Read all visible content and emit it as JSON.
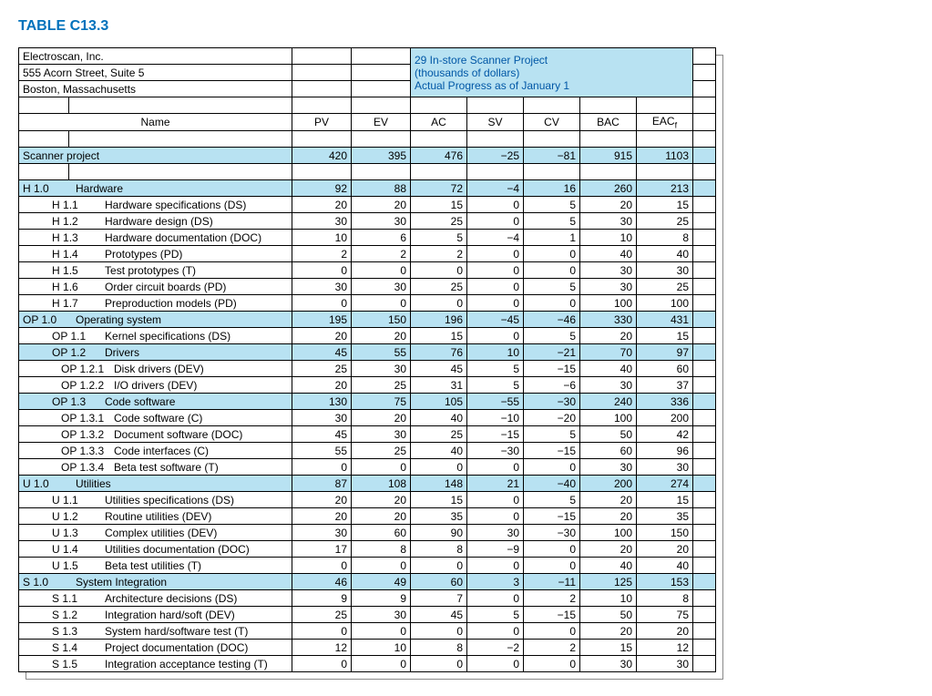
{
  "title": "TABLE C13.3",
  "company": {
    "name": "Electroscan, Inc.",
    "addr1": "555 Acorn Street, Suite 5",
    "addr2": "Boston, Massachusetts"
  },
  "project_header": {
    "line1": "29 In-store Scanner Project",
    "line2": "(thousands of dollars)",
    "line3": "Actual Progress as of January 1"
  },
  "columns": {
    "name": "Name",
    "pv": "PV",
    "ev": "EV",
    "ac": "AC",
    "sv": "SV",
    "cv": "CV",
    "bac": "BAC",
    "eac": "EAC"
  },
  "colors": {
    "highlight": "#b8e2f2",
    "title": "#0072bc",
    "proj_title": "#0057a6",
    "border": "#000000",
    "background": "#ffffff"
  },
  "rows": [
    {
      "hl": true,
      "code": "",
      "name": "Scanner project",
      "pv": "420",
      "ev": "395",
      "ac": "476",
      "sv": "−25",
      "cv": "−81",
      "bac": "915",
      "eac": "1103",
      "indent": 0,
      "spacer_after": true
    },
    {
      "hl": true,
      "code": "H 1.0",
      "name": "Hardware",
      "pv": "92",
      "ev": "88",
      "ac": "72",
      "sv": "−4",
      "cv": "16",
      "bac": "260",
      "eac": "213",
      "indent": 0
    },
    {
      "code": "H 1.1",
      "name": "Hardware specifications (DS)",
      "pv": "20",
      "ev": "20",
      "ac": "15",
      "sv": "0",
      "cv": "5",
      "bac": "20",
      "eac": "15",
      "indent": 1
    },
    {
      "code": "H 1.2",
      "name": "Hardware design (DS)",
      "pv": "30",
      "ev": "30",
      "ac": "25",
      "sv": "0",
      "cv": "5",
      "bac": "30",
      "eac": "25",
      "indent": 1
    },
    {
      "code": "H 1.3",
      "name": "Hardware documentation (DOC)",
      "pv": "10",
      "ev": "6",
      "ac": "5",
      "sv": "−4",
      "cv": "1",
      "bac": "10",
      "eac": "8",
      "indent": 1
    },
    {
      "code": "H 1.4",
      "name": "Prototypes (PD)",
      "pv": "2",
      "ev": "2",
      "ac": "2",
      "sv": "0",
      "cv": "0",
      "bac": "40",
      "eac": "40",
      "indent": 1
    },
    {
      "code": "H 1.5",
      "name": "Test prototypes (T)",
      "pv": "0",
      "ev": "0",
      "ac": "0",
      "sv": "0",
      "cv": "0",
      "bac": "30",
      "eac": "30",
      "indent": 1
    },
    {
      "code": "H 1.6",
      "name": "Order circuit boards (PD)",
      "pv": "30",
      "ev": "30",
      "ac": "25",
      "sv": "0",
      "cv": "5",
      "bac": "30",
      "eac": "25",
      "indent": 1
    },
    {
      "code": "H 1.7",
      "name": "Preproduction models (PD)",
      "pv": "0",
      "ev": "0",
      "ac": "0",
      "sv": "0",
      "cv": "0",
      "bac": "100",
      "eac": "100",
      "indent": 1
    },
    {
      "hl": true,
      "code": "OP 1.0",
      "name": "Operating system",
      "pv": "195",
      "ev": "150",
      "ac": "196",
      "sv": "−45",
      "cv": "−46",
      "bac": "330",
      "eac": "431",
      "indent": 0
    },
    {
      "code": "OP 1.1",
      "name": "Kernel specifications (DS)",
      "pv": "20",
      "ev": "20",
      "ac": "15",
      "sv": "0",
      "cv": "5",
      "bac": "20",
      "eac": "15",
      "indent": 1
    },
    {
      "hl": true,
      "code": "OP 1.2",
      "name": "Drivers",
      "pv": "45",
      "ev": "55",
      "ac": "76",
      "sv": "10",
      "cv": "−21",
      "bac": "70",
      "eac": "97",
      "indent": 1
    },
    {
      "code": "OP 1.2.1",
      "name": "Disk drivers (DEV)",
      "pv": "25",
      "ev": "30",
      "ac": "45",
      "sv": "5",
      "cv": "−15",
      "bac": "40",
      "eac": "60",
      "indent": 2
    },
    {
      "code": "OP 1.2.2",
      "name": "I/O drivers (DEV)",
      "pv": "20",
      "ev": "25",
      "ac": "31",
      "sv": "5",
      "cv": "−6",
      "bac": "30",
      "eac": "37",
      "indent": 2
    },
    {
      "hl": true,
      "code": "OP 1.3",
      "name": "Code software",
      "pv": "130",
      "ev": "75",
      "ac": "105",
      "sv": "−55",
      "cv": "−30",
      "bac": "240",
      "eac": "336",
      "indent": 1
    },
    {
      "code": "OP 1.3.1",
      "name": "Code software (C)",
      "pv": "30",
      "ev": "20",
      "ac": "40",
      "sv": "−10",
      "cv": "−20",
      "bac": "100",
      "eac": "200",
      "indent": 2
    },
    {
      "code": "OP 1.3.2",
      "name": "Document software (DOC)",
      "pv": "45",
      "ev": "30",
      "ac": "25",
      "sv": "−15",
      "cv": "5",
      "bac": "50",
      "eac": "42",
      "indent": 2
    },
    {
      "code": "OP 1.3.3",
      "name": "Code interfaces (C)",
      "pv": "55",
      "ev": "25",
      "ac": "40",
      "sv": "−30",
      "cv": "−15",
      "bac": "60",
      "eac": "96",
      "indent": 2
    },
    {
      "code": "OP 1.3.4",
      "name": "Beta test software (T)",
      "pv": "0",
      "ev": "0",
      "ac": "0",
      "sv": "0",
      "cv": "0",
      "bac": "30",
      "eac": "30",
      "indent": 2
    },
    {
      "hl": true,
      "code": "U 1.0",
      "name": "Utilities",
      "pv": "87",
      "ev": "108",
      "ac": "148",
      "sv": "21",
      "cv": "−40",
      "bac": "200",
      "eac": "274",
      "indent": 0
    },
    {
      "code": "U 1.1",
      "name": "Utilities specifications (DS)",
      "pv": "20",
      "ev": "20",
      "ac": "15",
      "sv": "0",
      "cv": "5",
      "bac": "20",
      "eac": "15",
      "indent": 1
    },
    {
      "code": "U 1.2",
      "name": "Routine utilities (DEV)",
      "pv": "20",
      "ev": "20",
      "ac": "35",
      "sv": "0",
      "cv": "−15",
      "bac": "20",
      "eac": "35",
      "indent": 1
    },
    {
      "code": "U 1.3",
      "name": "Complex utilities (DEV)",
      "pv": "30",
      "ev": "60",
      "ac": "90",
      "sv": "30",
      "cv": "−30",
      "bac": "100",
      "eac": "150",
      "indent": 1
    },
    {
      "code": "U 1.4",
      "name": "Utilities documentation (DOC)",
      "pv": "17",
      "ev": "8",
      "ac": "8",
      "sv": "−9",
      "cv": "0",
      "bac": "20",
      "eac": "20",
      "indent": 1
    },
    {
      "code": "U 1.5",
      "name": "Beta test utilities (T)",
      "pv": "0",
      "ev": "0",
      "ac": "0",
      "sv": "0",
      "cv": "0",
      "bac": "40",
      "eac": "40",
      "indent": 1
    },
    {
      "hl": true,
      "code": "S 1.0",
      "name": "System Integration",
      "pv": "46",
      "ev": "49",
      "ac": "60",
      "sv": "3",
      "cv": "−11",
      "bac": "125",
      "eac": "153",
      "indent": 0
    },
    {
      "code": "S 1.1",
      "name": "Architecture decisions (DS)",
      "pv": "9",
      "ev": "9",
      "ac": "7",
      "sv": "0",
      "cv": "2",
      "bac": "10",
      "eac": "8",
      "indent": 1
    },
    {
      "code": "S 1.2",
      "name": "Integration hard/soft (DEV)",
      "pv": "25",
      "ev": "30",
      "ac": "45",
      "sv": "5",
      "cv": "−15",
      "bac": "50",
      "eac": "75",
      "indent": 1
    },
    {
      "code": "S 1.3",
      "name": "System hard/software test (T)",
      "pv": "0",
      "ev": "0",
      "ac": "0",
      "sv": "0",
      "cv": "0",
      "bac": "20",
      "eac": "20",
      "indent": 1
    },
    {
      "code": "S 1.4",
      "name": "Project documentation (DOC)",
      "pv": "12",
      "ev": "10",
      "ac": "8",
      "sv": "−2",
      "cv": "2",
      "bac": "15",
      "eac": "12",
      "indent": 1
    },
    {
      "code": "S 1.5",
      "name": "Integration acceptance testing (T)",
      "pv": "0",
      "ev": "0",
      "ac": "0",
      "sv": "0",
      "cv": "0",
      "bac": "30",
      "eac": "30",
      "indent": 1
    }
  ]
}
